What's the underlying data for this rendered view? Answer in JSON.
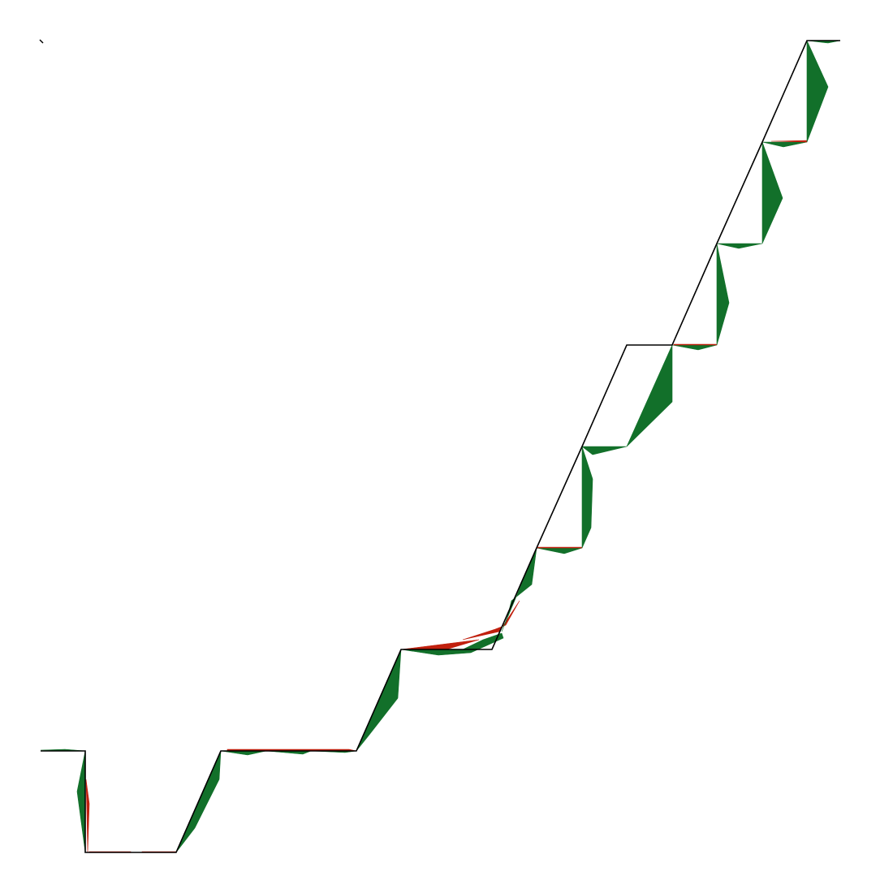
{
  "chart_data": {
    "type": "line",
    "grid": false,
    "legend": "none",
    "colors": {
      "reference_line": "#000000",
      "fill_above": "#12702a",
      "fill_below": "#c0200e"
    },
    "xlim": [
      0,
      1
    ],
    "ylim": [
      0,
      1
    ],
    "reference": {
      "name": "",
      "x": [
        0.0,
        0.055,
        0.055,
        0.111,
        0.167,
        0.167,
        0.222,
        0.278,
        0.333,
        0.389,
        0.389,
        0.444,
        0.5,
        0.556,
        0.611,
        0.611,
        0.667,
        0.667,
        0.722,
        0.778,
        0.833,
        0.833,
        0.889,
        0.889,
        0.944,
        0.944,
        0.985
      ],
      "y": [
        0.125,
        0.125,
        0.0,
        0.0,
        0.0,
        0.0,
        0.125,
        0.125,
        0.125,
        0.125,
        0.125,
        0.25,
        0.25,
        0.25,
        0.375,
        0.375,
        0.5,
        0.5,
        0.625,
        0.625,
        0.75,
        0.75,
        0.875,
        0.875,
        1.0,
        1.0,
        1.0
      ]
    },
    "polygons": [
      {
        "series": "above",
        "points": [
          [
            0.0,
            0.126
          ],
          [
            0.055,
            0.125
          ],
          [
            0.055,
            0.0
          ],
          [
            0.045,
            0.075
          ],
          [
            0.055,
            0.125
          ],
          [
            0.03,
            0.127
          ]
        ]
      },
      {
        "series": "below",
        "points": [
          [
            0.056,
            0.09
          ],
          [
            0.06,
            0.06
          ],
          [
            0.058,
            0.0
          ],
          [
            0.057,
            0.05
          ]
        ]
      },
      {
        "series": "below",
        "points": [
          [
            0.06,
            0.0
          ],
          [
            0.111,
            0.0
          ],
          [
            0.111,
            0.001
          ],
          [
            0.06,
            0.001
          ]
        ]
      },
      {
        "series": "below",
        "points": [
          [
            0.125,
            0.0
          ],
          [
            0.167,
            0.0
          ],
          [
            0.167,
            0.001
          ],
          [
            0.125,
            0.001
          ]
        ]
      },
      {
        "series": "above",
        "points": [
          [
            0.167,
            0.0
          ],
          [
            0.222,
            0.125
          ],
          [
            0.22,
            0.09
          ],
          [
            0.19,
            0.03
          ]
        ]
      },
      {
        "series": "above",
        "points": [
          [
            0.222,
            0.125
          ],
          [
            0.278,
            0.125
          ],
          [
            0.255,
            0.12
          ]
        ]
      },
      {
        "series": "above",
        "points": [
          [
            0.278,
            0.125
          ],
          [
            0.333,
            0.125
          ],
          [
            0.323,
            0.121
          ]
        ]
      },
      {
        "series": "above",
        "points": [
          [
            0.333,
            0.125
          ],
          [
            0.389,
            0.125
          ],
          [
            0.375,
            0.123
          ]
        ]
      },
      {
        "series": "below",
        "points": [
          [
            0.23,
            0.125
          ],
          [
            0.389,
            0.125
          ],
          [
            0.38,
            0.127
          ],
          [
            0.23,
            0.127
          ]
        ]
      },
      {
        "series": "above",
        "points": [
          [
            0.389,
            0.125
          ],
          [
            0.444,
            0.25
          ],
          [
            0.44,
            0.19
          ],
          [
            0.405,
            0.145
          ]
        ]
      },
      {
        "series": "below",
        "points": [
          [
            0.444,
            0.25
          ],
          [
            0.54,
            0.262
          ],
          [
            0.5,
            0.25
          ]
        ]
      },
      {
        "series": "above",
        "points": [
          [
            0.444,
            0.25
          ],
          [
            0.52,
            0.25
          ],
          [
            0.545,
            0.262
          ],
          [
            0.568,
            0.27
          ],
          [
            0.57,
            0.264
          ],
          [
            0.53,
            0.246
          ],
          [
            0.49,
            0.243
          ]
        ]
      },
      {
        "series": "below",
        "points": [
          [
            0.52,
            0.262
          ],
          [
            0.565,
            0.272
          ],
          [
            0.59,
            0.31
          ],
          [
            0.573,
            0.28
          ],
          [
            0.56,
            0.275
          ]
        ]
      },
      {
        "series": "above",
        "points": [
          [
            0.568,
            0.272
          ],
          [
            0.611,
            0.375
          ],
          [
            0.605,
            0.33
          ],
          [
            0.58,
            0.31
          ],
          [
            0.575,
            0.29
          ]
        ]
      },
      {
        "series": "above",
        "points": [
          [
            0.611,
            0.375
          ],
          [
            0.667,
            0.375
          ],
          [
            0.645,
            0.368
          ]
        ]
      },
      {
        "series": "below",
        "points": [
          [
            0.611,
            0.375
          ],
          [
            0.667,
            0.375
          ],
          [
            0.667,
            0.376
          ],
          [
            0.611,
            0.376
          ]
        ]
      },
      {
        "series": "above",
        "points": [
          [
            0.667,
            0.375
          ],
          [
            0.667,
            0.5
          ],
          [
            0.68,
            0.46
          ],
          [
            0.678,
            0.4
          ]
        ]
      },
      {
        "series": "above",
        "points": [
          [
            0.667,
            0.5
          ],
          [
            0.722,
            0.5
          ],
          [
            0.68,
            0.49
          ]
        ]
      },
      {
        "series": "above",
        "points": [
          [
            0.722,
            0.5
          ],
          [
            0.778,
            0.625
          ],
          [
            0.778,
            0.555
          ]
        ]
      },
      {
        "series": "above",
        "points": [
          [
            0.778,
            0.625
          ],
          [
            0.833,
            0.625
          ],
          [
            0.81,
            0.619
          ]
        ]
      },
      {
        "series": "below",
        "points": [
          [
            0.78,
            0.625
          ],
          [
            0.833,
            0.625
          ],
          [
            0.833,
            0.626
          ],
          [
            0.78,
            0.626
          ]
        ]
      },
      {
        "series": "above",
        "points": [
          [
            0.833,
            0.625
          ],
          [
            0.833,
            0.75
          ],
          [
            0.848,
            0.677
          ]
        ]
      },
      {
        "series": "above",
        "points": [
          [
            0.833,
            0.75
          ],
          [
            0.889,
            0.75
          ],
          [
            0.86,
            0.744
          ]
        ]
      },
      {
        "series": "above",
        "points": [
          [
            0.889,
            0.75
          ],
          [
            0.889,
            0.875
          ],
          [
            0.914,
            0.806
          ]
        ]
      },
      {
        "series": "above",
        "points": [
          [
            0.889,
            0.875
          ],
          [
            0.944,
            0.875
          ],
          [
            0.915,
            0.869
          ]
        ]
      },
      {
        "series": "below",
        "points": [
          [
            0.9,
            0.876
          ],
          [
            0.944,
            0.875
          ],
          [
            0.944,
            0.877
          ]
        ]
      },
      {
        "series": "above",
        "points": [
          [
            0.944,
            0.875
          ],
          [
            0.944,
            1.0
          ],
          [
            0.97,
            0.943
          ]
        ]
      },
      {
        "series": "above",
        "points": [
          [
            0.944,
            1.0
          ],
          [
            0.985,
            1.0
          ],
          [
            0.97,
            0.997
          ]
        ]
      }
    ]
  }
}
